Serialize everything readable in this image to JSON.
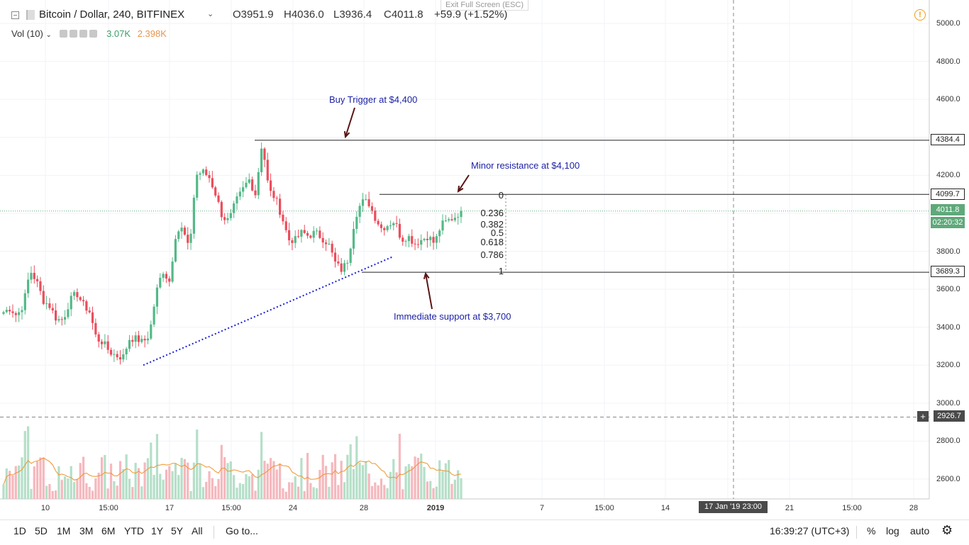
{
  "header": {
    "symbol": "Bitcoin / Dollar, 240, BITFINEX",
    "open": "O3951.9",
    "high": "H4036.0",
    "low": "L3936.4",
    "close": "C4011.8",
    "change": "+59.9 (+1.52%)",
    "exit_fullscreen": "Exit Full Screen (ESC)",
    "warning_icon": "!"
  },
  "volume_indicator": {
    "label": "Vol (10)",
    "value1": "3.07K",
    "value2": "2.398K"
  },
  "annotations": {
    "buy_trigger": "Buy Trigger at $4,400",
    "minor_resistance": "Minor resistance at $4,100",
    "immediate_support": "Immediate support at $3,700"
  },
  "fib_levels": [
    "0",
    "0.236",
    "0.382",
    "0.5",
    "0.618",
    "0.786",
    "1"
  ],
  "price_tags": {
    "buy_level": "4384.4",
    "resistance_level": "4099.7",
    "last_price": "4011.8",
    "countdown": "02:20:32",
    "support_level": "3689.3",
    "crosshair": "2926.7"
  },
  "cursor_date": "17 Jan '19   23:00",
  "bottom_bar": {
    "ranges": [
      "1D",
      "5D",
      "1M",
      "3M",
      "6M",
      "YTD",
      "1Y",
      "5Y",
      "All"
    ],
    "goto": "Go to...",
    "clock": "16:39:27 (UTC+3)",
    "percent": "%",
    "log": "log",
    "auto": "auto",
    "settings_icon": "⚙"
  },
  "colors": {
    "up": "#53b987",
    "down": "#eb4d5c",
    "vol_up": "#b5dfc8",
    "vol_down": "#f5b8bd",
    "ma": "#f0932b",
    "trendline": "#1d22d8",
    "annotation": "#1d22a6",
    "last_price": "#5fa97a"
  },
  "chart_data": {
    "type": "candlestick",
    "ylim": [
      2500,
      5100
    ],
    "y_ticks": [
      "5000.0",
      "4800.0",
      "4600.0",
      "4400.0",
      "4200.0",
      "4000.0",
      "3800.0",
      "3600.0",
      "3400.0",
      "3200.0",
      "3000.0",
      "2800.0",
      "2600.0"
    ],
    "x_ticks": [
      "10",
      "15:00",
      "17",
      "15:00",
      "24",
      "28",
      "2019",
      "7",
      "15:00",
      "14",
      "15:00",
      "21",
      "15:00",
      "28"
    ],
    "horizontal_levels": [
      4384.4,
      4099.7,
      3689.3
    ],
    "fibonacci": {
      "high": 4099.7,
      "low": 3689.3
    },
    "trendline": {
      "from": 3200,
      "to": 3770
    },
    "close_path": [
      3480,
      3500,
      3460,
      3520,
      3700,
      3640,
      3540,
      3510,
      3440,
      3440,
      3540,
      3580,
      3520,
      3480,
      3340,
      3320,
      3270,
      3250,
      3240,
      3340,
      3340,
      3320,
      3360,
      3580,
      3700,
      3640,
      3900,
      3920,
      3800,
      4200,
      4220,
      4190,
      4100,
      3980,
      3960,
      4060,
      4120,
      4180,
      4100,
      4380,
      4120,
      4080,
      3980,
      3860,
      3860,
      3900,
      3880,
      3900,
      3870,
      3840,
      3740,
      3700,
      3760,
      3980,
      4060,
      4060,
      3980,
      3920,
      3940,
      3960,
      3860,
      3880,
      3840,
      3860,
      3880,
      3840,
      3940,
      3960,
      3980,
      4011.8
    ]
  }
}
